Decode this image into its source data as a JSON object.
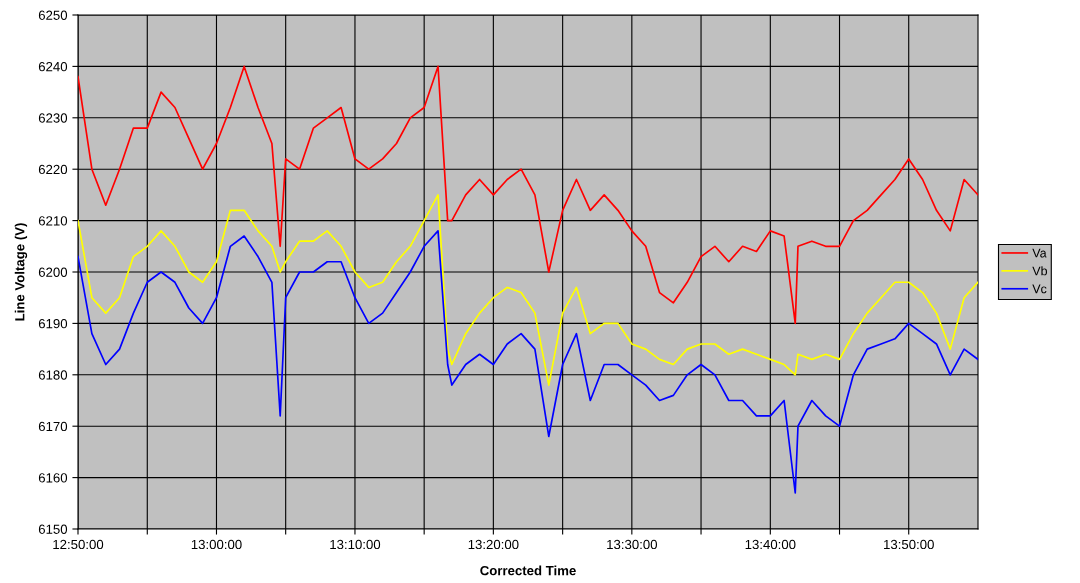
{
  "chart_data": {
    "type": "line",
    "xlabel": "Corrected Time",
    "ylabel": "Line Voltage (V)",
    "x": [
      12.8333,
      12.85,
      12.8667,
      12.8833,
      12.9,
      12.9167,
      12.9333,
      12.95,
      12.9667,
      12.9833,
      13.0,
      13.0167,
      13.0333,
      13.05,
      13.0667,
      13.0767,
      13.0833,
      13.1,
      13.1167,
      13.1333,
      13.15,
      13.1667,
      13.1833,
      13.2,
      13.2167,
      13.2333,
      13.25,
      13.2667,
      13.2783,
      13.2833,
      13.3,
      13.3167,
      13.3333,
      13.35,
      13.3667,
      13.3833,
      13.4,
      13.4167,
      13.4333,
      13.45,
      13.4667,
      13.4833,
      13.5,
      13.5167,
      13.5333,
      13.55,
      13.5667,
      13.5833,
      13.6,
      13.6167,
      13.6333,
      13.65,
      13.6667,
      13.6833,
      13.6967,
      13.7,
      13.7167,
      13.7333,
      13.75,
      13.7667,
      13.7833,
      13.8,
      13.8167,
      13.8333,
      13.85,
      13.8667,
      13.8833,
      13.9,
      13.9167
    ],
    "series": [
      {
        "name": "Va",
        "color": "#ff0000",
        "values": [
          6238,
          6220,
          6213,
          6220,
          6228,
          6228,
          6235,
          6232,
          6226,
          6220,
          6225,
          6232,
          6240,
          6232,
          6225,
          6205,
          6222,
          6220,
          6228,
          6230,
          6232,
          6222,
          6220,
          6222,
          6225,
          6230,
          6232,
          6240,
          6210,
          6210,
          6215,
          6218,
          6215,
          6218,
          6220,
          6215,
          6200,
          6212,
          6218,
          6212,
          6215,
          6212,
          6208,
          6205,
          6196,
          6194,
          6198,
          6203,
          6205,
          6202,
          6205,
          6204,
          6208,
          6207,
          6190,
          6205,
          6206,
          6205,
          6205,
          6210,
          6212,
          6215,
          6218,
          6222,
          6218,
          6212,
          6208,
          6218,
          6215
        ]
      },
      {
        "name": "Vb",
        "color": "#ffff00",
        "values": [
          6210,
          6195,
          6192,
          6195,
          6203,
          6205,
          6208,
          6205,
          6200,
          6198,
          6202,
          6212,
          6212,
          6208,
          6205,
          6200,
          6202,
          6206,
          6206,
          6208,
          6205,
          6200,
          6197,
          6198,
          6202,
          6205,
          6210,
          6215,
          6185,
          6182,
          6188,
          6192,
          6195,
          6197,
          6196,
          6192,
          6178,
          6192,
          6197,
          6188,
          6190,
          6190,
          6186,
          6185,
          6183,
          6182,
          6185,
          6186,
          6186,
          6184,
          6185,
          6184,
          6183,
          6182,
          6180,
          6184,
          6183,
          6184,
          6183,
          6188,
          6192,
          6195,
          6198,
          6198,
          6196,
          6192,
          6185,
          6195,
          6198
        ]
      },
      {
        "name": "Vc",
        "color": "#0000ff",
        "values": [
          6203,
          6188,
          6182,
          6185,
          6192,
          6198,
          6200,
          6198,
          6193,
          6190,
          6195,
          6205,
          6207,
          6203,
          6198,
          6172,
          6195,
          6200,
          6200,
          6202,
          6202,
          6195,
          6190,
          6192,
          6196,
          6200,
          6205,
          6208,
          6182,
          6178,
          6182,
          6184,
          6182,
          6186,
          6188,
          6185,
          6168,
          6182,
          6188,
          6175,
          6182,
          6182,
          6180,
          6178,
          6175,
          6176,
          6180,
          6182,
          6180,
          6175,
          6175,
          6172,
          6172,
          6175,
          6157,
          6170,
          6175,
          6172,
          6170,
          6180,
          6185,
          6186,
          6187,
          6190,
          6188,
          6186,
          6180,
          6185,
          6183
        ]
      }
    ],
    "xlim": [
      12.8333,
      13.9167
    ],
    "xticks": [
      {
        "value": 12.8333,
        "label": "12:50:00"
      },
      {
        "value": 12.9167,
        "label": null
      },
      {
        "value": 13.0,
        "label": "13:00:00"
      },
      {
        "value": 13.0833,
        "label": null
      },
      {
        "value": 13.1667,
        "label": "13:10:00"
      },
      {
        "value": 13.25,
        "label": null
      },
      {
        "value": 13.3333,
        "label": "13:20:00"
      },
      {
        "value": 13.4167,
        "label": null
      },
      {
        "value": 13.5,
        "label": "13:30:00"
      },
      {
        "value": 13.5833,
        "label": null
      },
      {
        "value": 13.6667,
        "label": "13:40:00"
      },
      {
        "value": 13.75,
        "label": null
      },
      {
        "value": 13.8333,
        "label": "13:50:00"
      }
    ],
    "ylim": [
      6150,
      6250
    ],
    "yticks": [
      6150,
      6160,
      6170,
      6180,
      6190,
      6200,
      6210,
      6220,
      6230,
      6240,
      6250
    ],
    "grid": true,
    "legend": "right",
    "marker": "none",
    "line_style": "solid"
  }
}
